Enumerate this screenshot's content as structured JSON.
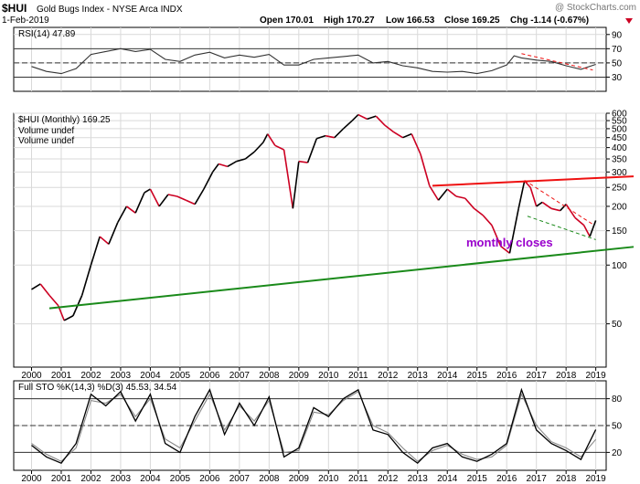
{
  "header": {
    "symbol": "$HUI",
    "description": "Gold Bugs Index - NYSE Arca INDX",
    "watermark": "@ StockCharts.com",
    "date": "1-Feb-2019",
    "open": "Open 170.01",
    "high": "High 170.27",
    "low": "Low 166.53",
    "close": "Close 169.25",
    "chg": "Chg -1.14 (-0.67%)"
  },
  "colors": {
    "up": "#000000",
    "down": "#cc0022",
    "support": "#1a8a1a",
    "resistance": "#ee1111",
    "annotation": "#9900cc",
    "rsi_fill": "#9aa89a",
    "grid": "#d9d9d9"
  },
  "annotations": {
    "monthly_closes": "monthly closes"
  },
  "chart_data": [
    {
      "type": "line",
      "panel": "rsi",
      "label": "RSI(14) 47.89",
      "ylim": [
        10,
        100
      ],
      "yticks": [
        30,
        50,
        70,
        90
      ],
      "hlines": [
        30,
        50,
        70
      ],
      "x": [
        2000.0,
        2000.5,
        2001.0,
        2001.5,
        2002.0,
        2002.5,
        2003.0,
        2003.5,
        2004.0,
        2004.5,
        2005.0,
        2005.5,
        2006.0,
        2006.5,
        2007.0,
        2007.5,
        2008.0,
        2008.5,
        2009.0,
        2009.5,
        2010.0,
        2010.5,
        2011.0,
        2011.5,
        2012.0,
        2012.5,
        2013.0,
        2013.5,
        2014.0,
        2014.5,
        2015.0,
        2015.5,
        2016.0,
        2016.25,
        2016.5,
        2017.0,
        2017.5,
        2018.0,
        2018.5,
        2019.0
      ],
      "values": [
        45,
        38,
        35,
        42,
        62,
        66,
        70,
        66,
        69,
        55,
        52,
        61,
        65,
        57,
        61,
        58,
        62,
        47,
        47,
        55,
        57,
        59,
        61,
        50,
        52,
        46,
        43,
        38,
        37,
        38,
        35,
        39,
        47,
        60,
        57,
        54,
        52,
        46,
        41,
        47.89
      ]
    },
    {
      "type": "line",
      "panel": "price",
      "label": "$HUI (Monthly) 169.25",
      "legend": [
        "Volume undef",
        "Volume undef"
      ],
      "ylim": [
        30,
        600
      ],
      "yticks": [
        50,
        100,
        150,
        200,
        250,
        300,
        350,
        400,
        450,
        500,
        550,
        600
      ],
      "x": [
        2000.0,
        2000.3,
        2000.6,
        2000.9,
        2001.1,
        2001.4,
        2001.7,
        2002.0,
        2002.3,
        2002.6,
        2002.9,
        2003.2,
        2003.5,
        2003.8,
        2004.0,
        2004.3,
        2004.6,
        2004.9,
        2005.2,
        2005.5,
        2005.8,
        2006.1,
        2006.3,
        2006.6,
        2006.9,
        2007.2,
        2007.5,
        2007.8,
        2007.95,
        2008.2,
        2008.5,
        2008.8,
        2009.0,
        2009.3,
        2009.6,
        2009.9,
        2010.2,
        2010.5,
        2010.8,
        2011.0,
        2011.3,
        2011.6,
        2011.9,
        2012.2,
        2012.5,
        2012.8,
        2013.1,
        2013.4,
        2013.7,
        2014.0,
        2014.3,
        2014.6,
        2014.9,
        2015.2,
        2015.5,
        2015.8,
        2016.1,
        2016.4,
        2016.6,
        2016.8,
        2017.0,
        2017.2,
        2017.5,
        2017.8,
        2018.0,
        2018.3,
        2018.6,
        2018.8,
        2019.0
      ],
      "values": [
        75,
        80,
        70,
        62,
        52,
        55,
        70,
        100,
        140,
        128,
        165,
        200,
        185,
        235,
        245,
        200,
        230,
        225,
        215,
        205,
        245,
        300,
        330,
        320,
        340,
        350,
        380,
        425,
        470,
        410,
        390,
        195,
        340,
        335,
        445,
        460,
        450,
        500,
        550,
        590,
        560,
        580,
        520,
        480,
        450,
        470,
        370,
        255,
        215,
        245,
        225,
        220,
        195,
        180,
        160,
        125,
        115,
        195,
        270,
        250,
        200,
        210,
        195,
        190,
        205,
        175,
        160,
        140,
        169.25
      ]
    },
    {
      "type": "line",
      "panel": "stochastic",
      "label": "Full STO %K(14,3) %D(3) 45.53, 34.54",
      "ylim": [
        0,
        100
      ],
      "yticks": [
        20,
        50,
        80
      ],
      "hlines": [
        20,
        50,
        80
      ],
      "x": [
        2000.0,
        2000.5,
        2001.0,
        2001.5,
        2002.0,
        2002.5,
        2003.0,
        2003.5,
        2004.0,
        2004.5,
        2005.0,
        2005.5,
        2006.0,
        2006.5,
        2007.0,
        2007.5,
        2008.0,
        2008.5,
        2009.0,
        2009.5,
        2010.0,
        2010.5,
        2011.0,
        2011.5,
        2012.0,
        2012.5,
        2013.0,
        2013.5,
        2014.0,
        2014.5,
        2015.0,
        2015.5,
        2016.0,
        2016.5,
        2017.0,
        2017.5,
        2018.0,
        2018.5,
        2019.0
      ],
      "series": [
        {
          "name": "%K",
          "values": [
            28,
            15,
            8,
            30,
            85,
            72,
            88,
            55,
            85,
            30,
            20,
            60,
            90,
            40,
            75,
            50,
            82,
            15,
            25,
            70,
            60,
            80,
            90,
            45,
            40,
            20,
            8,
            25,
            30,
            15,
            10,
            18,
            30,
            90,
            45,
            30,
            22,
            12,
            45.53
          ]
        },
        {
          "name": "%D",
          "values": [
            30,
            18,
            10,
            25,
            78,
            75,
            85,
            60,
            80,
            35,
            25,
            55,
            85,
            45,
            72,
            55,
            78,
            20,
            22,
            65,
            62,
            78,
            88,
            50,
            42,
            25,
            10,
            22,
            28,
            18,
            12,
            15,
            28,
            85,
            50,
            32,
            25,
            15,
            34.54
          ]
        }
      ]
    }
  ],
  "x_axis": {
    "labels": [
      "2000",
      "2001",
      "2002",
      "2003",
      "2004",
      "2005",
      "2006",
      "2007",
      "2008",
      "2009",
      "2010",
      "2011",
      "2012",
      "2013",
      "2014",
      "2015",
      "2016",
      "2017",
      "2018",
      "2019"
    ]
  }
}
